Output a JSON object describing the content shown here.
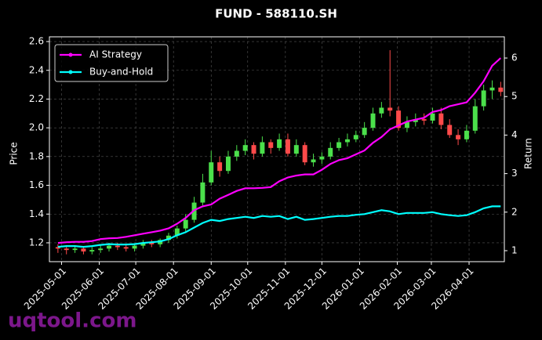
{
  "chart_data": {
    "type": "candlestick",
    "title": "FUND - 588110.SH",
    "ylabel": "Price",
    "y2label": "Return",
    "watermark": "uqtool.com",
    "up_color": "#4be04b",
    "down_color": "#ff4a4a",
    "grid": true,
    "legend": "upper left",
    "xlim": [
      "2025-04-21",
      "2026-04-30"
    ],
    "xticks": [
      "2025-05-01",
      "2025-06-01",
      "2025-07-01",
      "2025-08-01",
      "2025-09-01",
      "2025-10-01",
      "2025-11-01",
      "2025-12-01",
      "2026-01-01",
      "2026-02-01",
      "2026-03-01",
      "2026-04-01"
    ],
    "ylim": [
      1.069,
      2.633
    ],
    "yticks": [
      1.2,
      1.4,
      1.6,
      1.8,
      {
        "value": 2,
        "label": "2.0"
      },
      2.2,
      2.4,
      2.6
    ],
    "y2lim": [
      0.715,
      6.55
    ],
    "y2ticks": [
      1,
      2,
      3,
      4,
      5,
      6
    ],
    "x": [
      "2025-04-28",
      "2025-05-05",
      "2025-05-12",
      "2025-05-19",
      "2025-05-26",
      "2025-06-02",
      "2025-06-09",
      "2025-06-16",
      "2025-06-23",
      "2025-06-30",
      "2025-07-07",
      "2025-07-14",
      "2025-07-21",
      "2025-07-28",
      "2025-08-04",
      "2025-08-11",
      "2025-08-18",
      "2025-08-25",
      "2025-09-01",
      "2025-09-08",
      "2025-09-15",
      "2025-09-22",
      "2025-09-29",
      "2025-10-06",
      "2025-10-13",
      "2025-10-20",
      "2025-10-27",
      "2025-11-03",
      "2025-11-10",
      "2025-11-17",
      "2025-11-24",
      "2025-12-01",
      "2025-12-08",
      "2025-12-15",
      "2025-12-22",
      "2025-12-29",
      "2026-01-05",
      "2026-01-12",
      "2026-01-19",
      "2026-01-26",
      "2026-02-02",
      "2026-02-09",
      "2026-02-16",
      "2026-02-23",
      "2026-03-02",
      "2026-03-09",
      "2026-03-16",
      "2026-03-23",
      "2026-03-30",
      "2026-04-06",
      "2026-04-13",
      "2026-04-20",
      "2026-04-27"
    ],
    "open": [
      1.17,
      1.16,
      1.15,
      1.16,
      1.14,
      1.15,
      1.16,
      1.18,
      1.17,
      1.16,
      1.18,
      1.2,
      1.19,
      1.22,
      1.25,
      1.3,
      1.36,
      1.48,
      1.62,
      1.76,
      1.7,
      1.8,
      1.84,
      1.88,
      1.82,
      1.9,
      1.86,
      1.92,
      1.82,
      1.88,
      1.76,
      1.78,
      1.8,
      1.86,
      1.9,
      1.92,
      1.95,
      2.0,
      2.1,
      2.14,
      2.12,
      2.0,
      2.04,
      2.06,
      2.05,
      2.1,
      2.02,
      1.95,
      1.92,
      1.98,
      2.15,
      2.26,
      2.28
    ],
    "high": [
      1.19,
      1.18,
      1.18,
      1.17,
      1.17,
      1.18,
      1.2,
      1.2,
      1.19,
      1.19,
      1.22,
      1.22,
      1.23,
      1.27,
      1.32,
      1.4,
      1.52,
      1.68,
      1.84,
      1.8,
      1.84,
      1.88,
      1.92,
      1.9,
      1.94,
      1.92,
      1.96,
      1.96,
      1.92,
      1.9,
      1.82,
      1.83,
      1.9,
      1.93,
      1.96,
      1.98,
      2.04,
      2.14,
      2.18,
      2.54,
      2.15,
      2.08,
      2.1,
      2.1,
      2.14,
      2.14,
      2.06,
      1.99,
      2.02,
      2.2,
      2.3,
      2.33,
      2.32
    ],
    "low": [
      1.13,
      1.12,
      1.13,
      1.12,
      1.12,
      1.13,
      1.14,
      1.15,
      1.14,
      1.14,
      1.16,
      1.17,
      1.17,
      1.2,
      1.23,
      1.28,
      1.34,
      1.46,
      1.6,
      1.66,
      1.68,
      1.77,
      1.81,
      1.78,
      1.8,
      1.82,
      1.84,
      1.8,
      1.8,
      1.74,
      1.73,
      1.75,
      1.78,
      1.84,
      1.87,
      1.9,
      1.93,
      1.98,
      2.07,
      2.08,
      1.98,
      1.97,
      2.01,
      2.02,
      2.03,
      1.99,
      1.93,
      1.88,
      1.9,
      1.96,
      2.12,
      2.2,
      2.22
    ],
    "close": [
      1.16,
      1.15,
      1.16,
      1.14,
      1.15,
      1.16,
      1.18,
      1.17,
      1.16,
      1.18,
      1.2,
      1.19,
      1.22,
      1.25,
      1.3,
      1.36,
      1.48,
      1.62,
      1.76,
      1.7,
      1.8,
      1.84,
      1.88,
      1.82,
      1.9,
      1.86,
      1.92,
      1.82,
      1.88,
      1.76,
      1.78,
      1.8,
      1.86,
      1.9,
      1.92,
      1.95,
      2.0,
      2.1,
      2.14,
      2.12,
      2.0,
      2.04,
      2.06,
      2.05,
      2.1,
      2.02,
      1.95,
      1.92,
      1.98,
      2.15,
      2.26,
      2.28,
      2.25
    ],
    "series": [
      {
        "name": "AI Strategy",
        "color": "#ff00ff",
        "axis": "y2",
        "values": [
          1.2,
          1.22,
          1.23,
          1.23,
          1.25,
          1.3,
          1.32,
          1.33,
          1.36,
          1.4,
          1.44,
          1.48,
          1.52,
          1.58,
          1.7,
          1.85,
          2.05,
          2.15,
          2.2,
          2.35,
          2.45,
          2.55,
          2.62,
          2.62,
          2.63,
          2.65,
          2.8,
          2.9,
          2.95,
          2.98,
          2.98,
          3.1,
          3.25,
          3.35,
          3.4,
          3.5,
          3.6,
          3.8,
          3.95,
          4.15,
          4.25,
          4.35,
          4.4,
          4.45,
          4.6,
          4.65,
          4.75,
          4.8,
          4.85,
          5.1,
          5.4,
          5.8,
          6.0
        ]
      },
      {
        "name": "Buy-and-Hold",
        "color": "#00ffff",
        "axis": "y2",
        "values": [
          1.1,
          1.12,
          1.12,
          1.1,
          1.12,
          1.15,
          1.17,
          1.16,
          1.16,
          1.17,
          1.2,
          1.22,
          1.24,
          1.3,
          1.4,
          1.48,
          1.6,
          1.72,
          1.8,
          1.77,
          1.82,
          1.85,
          1.88,
          1.85,
          1.9,
          1.88,
          1.9,
          1.82,
          1.88,
          1.8,
          1.82,
          1.85,
          1.88,
          1.9,
          1.9,
          1.93,
          1.95,
          2.0,
          2.05,
          2.02,
          1.95,
          1.98,
          1.98,
          1.98,
          2.0,
          1.95,
          1.92,
          1.9,
          1.92,
          2.0,
          2.1,
          2.15,
          2.15
        ]
      }
    ]
  }
}
